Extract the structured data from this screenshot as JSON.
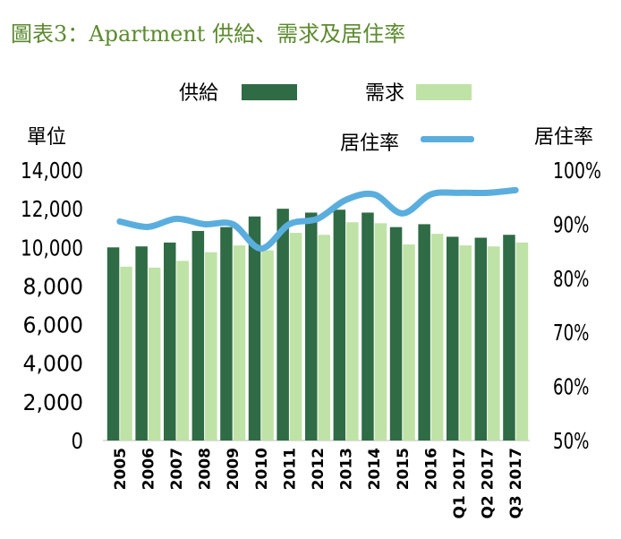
{
  "chart_data": {
    "type": "bar",
    "title": "圖表3：Apartment 供給、需求及居住率",
    "ylabel_left": "單位",
    "ylabel_right": "居住率",
    "categories": [
      "2005",
      "2006",
      "2007",
      "2008",
      "2009",
      "2010",
      "2011",
      "2012",
      "2013",
      "2014",
      "2015",
      "2016",
      "Q1 2017",
      "Q2 2017",
      "Q3 2017"
    ],
    "series": [
      {
        "name": "供給",
        "type": "bar",
        "axis": "left",
        "color": "#2f6b45",
        "values": [
          10000,
          10050,
          10250,
          10850,
          11050,
          11600,
          12000,
          11800,
          11950,
          11800,
          11050,
          11200,
          10550,
          10500,
          10650
        ]
      },
      {
        "name": "需求",
        "type": "bar",
        "axis": "left",
        "color": "#bfe2a6",
        "values": [
          9000,
          8950,
          9300,
          9750,
          10100,
          9850,
          10750,
          10650,
          11300,
          11250,
          10150,
          10700,
          10100,
          10050,
          10250
        ]
      },
      {
        "name": "居住率",
        "type": "line",
        "axis": "right",
        "color": "#5aaede",
        "values": [
          90.5,
          89.5,
          91.0,
          90.0,
          90.0,
          85.5,
          90.0,
          91.0,
          94.5,
          95.5,
          92.0,
          95.5,
          95.8,
          95.8,
          96.3
        ]
      }
    ],
    "ylim_left": [
      0,
      14000
    ],
    "yticks_left": [
      "0",
      "2,000",
      "4,000",
      "6,000",
      "8,000",
      "10,000",
      "12,000",
      "14,000"
    ],
    "ylim_right": [
      50,
      100
    ],
    "yticks_right": [
      "50%",
      "60%",
      "70%",
      "80%",
      "90%",
      "100%"
    ],
    "grid": false,
    "legend_position": "top"
  }
}
